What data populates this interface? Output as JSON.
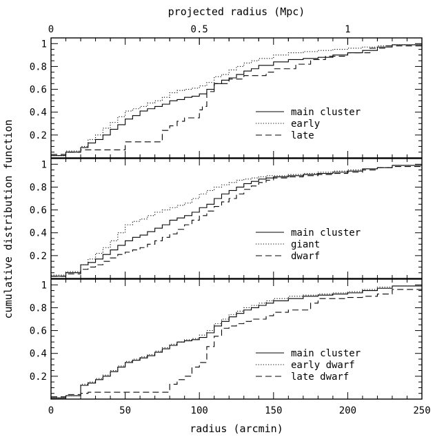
{
  "chart_data": {
    "type": "line",
    "step": true,
    "xlabel": "radius (arcmin)",
    "x2label": "projected radius (Mpc)",
    "ylabel": "cumulative distribution function",
    "xlim": [
      0,
      250
    ],
    "ylim": [
      0,
      1.05
    ],
    "x_ticks": [
      "0",
      "50",
      "100",
      "150",
      "200",
      "250"
    ],
    "x2_ticks": [
      {
        "value": 0,
        "label": "0"
      },
      {
        "value": 0.5,
        "label": "0.5"
      },
      {
        "value": 1,
        "label": "1"
      }
    ],
    "x2_scale_arcmin_per_mpc": 200,
    "y_ticks": [
      "0.2",
      "0.4",
      "0.6",
      "0.8",
      "1"
    ],
    "legend_position": "right-center",
    "panels": [
      {
        "series": [
          {
            "name": "main cluster",
            "style": "solid",
            "x": [
              0,
              10,
              20,
              25,
              30,
              35,
              40,
              45,
              50,
              55,
              60,
              65,
              70,
              75,
              80,
              85,
              90,
              95,
              100,
              105,
              110,
              115,
              120,
              125,
              130,
              135,
              140,
              150,
              160,
              170,
              180,
              190,
              200,
              210,
              220,
              230,
              250
            ],
            "y": [
              0.02,
              0.05,
              0.09,
              0.13,
              0.16,
              0.2,
              0.25,
              0.29,
              0.34,
              0.37,
              0.41,
              0.43,
              0.45,
              0.47,
              0.5,
              0.51,
              0.53,
              0.54,
              0.56,
              0.6,
              0.65,
              0.68,
              0.7,
              0.73,
              0.76,
              0.78,
              0.81,
              0.84,
              0.86,
              0.87,
              0.88,
              0.9,
              0.92,
              0.94,
              0.97,
              0.99,
              1
            ]
          },
          {
            "name": "early",
            "style": "dotted",
            "x": [
              0,
              10,
              20,
              25,
              30,
              35,
              40,
              45,
              50,
              55,
              60,
              65,
              70,
              75,
              80,
              85,
              90,
              95,
              100,
              105,
              110,
              115,
              120,
              125,
              130,
              135,
              140,
              150,
              160,
              170,
              180,
              190,
              200,
              210,
              220,
              230,
              250
            ],
            "y": [
              0.02,
              0.06,
              0.1,
              0.16,
              0.2,
              0.26,
              0.31,
              0.36,
              0.41,
              0.43,
              0.45,
              0.48,
              0.5,
              0.53,
              0.57,
              0.59,
              0.6,
              0.61,
              0.63,
              0.66,
              0.71,
              0.73,
              0.77,
              0.8,
              0.83,
              0.85,
              0.87,
              0.9,
              0.92,
              0.93,
              0.94,
              0.95,
              0.96,
              0.97,
              0.98,
              0.99,
              1
            ]
          },
          {
            "name": "late",
            "style": "dashed",
            "x": [
              0,
              10,
              20,
              30,
              50,
              60,
              75,
              80,
              85,
              90,
              100,
              102,
              105,
              110,
              120,
              130,
              145,
              150,
              165,
              175,
              185,
              200,
              215,
              225,
              250
            ],
            "y": [
              0.03,
              0.05,
              0.07,
              0.07,
              0.14,
              0.14,
              0.24,
              0.28,
              0.32,
              0.35,
              0.42,
              0.45,
              0.58,
              0.65,
              0.69,
              0.72,
              0.75,
              0.78,
              0.82,
              0.86,
              0.89,
              0.92,
              0.96,
              0.98,
              1
            ]
          }
        ]
      },
      {
        "series": [
          {
            "name": "main cluster",
            "style": "solid",
            "x": [
              0,
              10,
              20,
              25,
              30,
              35,
              40,
              45,
              50,
              55,
              60,
              65,
              70,
              75,
              80,
              85,
              90,
              95,
              100,
              105,
              110,
              115,
              120,
              125,
              130,
              135,
              140,
              145,
              150,
              160,
              170,
              180,
              190,
              200,
              210,
              220,
              230,
              250
            ],
            "y": [
              0.02,
              0.05,
              0.12,
              0.14,
              0.17,
              0.21,
              0.25,
              0.29,
              0.33,
              0.36,
              0.38,
              0.41,
              0.44,
              0.47,
              0.51,
              0.53,
              0.55,
              0.58,
              0.62,
              0.65,
              0.7,
              0.74,
              0.77,
              0.8,
              0.83,
              0.85,
              0.87,
              0.88,
              0.89,
              0.9,
              0.91,
              0.92,
              0.93,
              0.94,
              0.96,
              0.97,
              0.99,
              1
            ]
          },
          {
            "name": "giant",
            "style": "dotted",
            "x": [
              0,
              10,
              20,
              25,
              30,
              35,
              40,
              45,
              50,
              55,
              60,
              65,
              70,
              75,
              80,
              85,
              90,
              95,
              100,
              105,
              110,
              115,
              120,
              125,
              130,
              135,
              140,
              145,
              150,
              160,
              170,
              180,
              190,
              200,
              210,
              220,
              230,
              250
            ],
            "y": [
              0.03,
              0.06,
              0.12,
              0.17,
              0.22,
              0.27,
              0.33,
              0.4,
              0.47,
              0.5,
              0.52,
              0.55,
              0.58,
              0.6,
              0.62,
              0.64,
              0.66,
              0.7,
              0.74,
              0.77,
              0.8,
              0.82,
              0.84,
              0.86,
              0.87,
              0.88,
              0.89,
              0.9,
              0.9,
              0.91,
              0.92,
              0.93,
              0.94,
              0.95,
              0.96,
              0.97,
              0.99,
              1
            ]
          },
          {
            "name": "dwarf",
            "style": "dashed",
            "x": [
              0,
              10,
              20,
              25,
              30,
              35,
              40,
              45,
              50,
              55,
              60,
              65,
              70,
              75,
              80,
              85,
              90,
              95,
              100,
              105,
              110,
              115,
              120,
              125,
              130,
              135,
              140,
              145,
              150,
              160,
              170,
              180,
              190,
              200,
              210,
              220,
              230,
              250
            ],
            "y": [
              0.02,
              0.04,
              0.08,
              0.1,
              0.12,
              0.15,
              0.18,
              0.21,
              0.23,
              0.25,
              0.27,
              0.3,
              0.33,
              0.36,
              0.39,
              0.43,
              0.47,
              0.51,
              0.55,
              0.59,
              0.63,
              0.67,
              0.7,
              0.74,
              0.78,
              0.81,
              0.84,
              0.86,
              0.88,
              0.89,
              0.9,
              0.91,
              0.92,
              0.93,
              0.95,
              0.97,
              0.98,
              1
            ]
          }
        ]
      },
      {
        "series": [
          {
            "name": "main cluster",
            "style": "solid",
            "x": [
              0,
              10,
              20,
              25,
              30,
              35,
              40,
              45,
              50,
              55,
              60,
              65,
              70,
              75,
              80,
              85,
              90,
              95,
              100,
              105,
              110,
              115,
              120,
              125,
              130,
              135,
              140,
              145,
              150,
              160,
              170,
              180,
              190,
              200,
              210,
              220,
              230,
              250
            ],
            "y": [
              0.01,
              0.03,
              0.12,
              0.14,
              0.17,
              0.2,
              0.24,
              0.28,
              0.32,
              0.34,
              0.36,
              0.38,
              0.41,
              0.44,
              0.47,
              0.5,
              0.51,
              0.52,
              0.54,
              0.58,
              0.64,
              0.68,
              0.72,
              0.75,
              0.78,
              0.8,
              0.82,
              0.84,
              0.86,
              0.88,
              0.9,
              0.91,
              0.92,
              0.93,
              0.95,
              0.97,
              0.99,
              1
            ]
          },
          {
            "name": "early dwarf",
            "style": "dotted",
            "x": [
              0,
              10,
              20,
              25,
              30,
              35,
              40,
              45,
              50,
              55,
              60,
              65,
              70,
              75,
              80,
              85,
              90,
              95,
              100,
              105,
              110,
              115,
              120,
              125,
              130,
              135,
              140,
              145,
              150,
              160,
              170,
              180,
              190,
              200,
              210,
              220,
              230,
              250
            ],
            "y": [
              0.01,
              0.03,
              0.13,
              0.15,
              0.18,
              0.21,
              0.25,
              0.29,
              0.33,
              0.35,
              0.37,
              0.39,
              0.42,
              0.45,
              0.48,
              0.5,
              0.52,
              0.53,
              0.56,
              0.6,
              0.66,
              0.7,
              0.74,
              0.77,
              0.8,
              0.82,
              0.84,
              0.86,
              0.88,
              0.9,
              0.91,
              0.92,
              0.93,
              0.94,
              0.96,
              0.98,
              0.99,
              1
            ]
          },
          {
            "name": "late dwarf",
            "style": "dashed",
            "x": [
              0,
              10,
              20,
              25,
              75,
              80,
              85,
              90,
              95,
              100,
              105,
              110,
              115,
              120,
              125,
              130,
              135,
              145,
              150,
              160,
              175,
              180,
              200,
              210,
              220,
              230,
              250
            ],
            "y": [
              0.02,
              0.04,
              0.05,
              0.06,
              0.06,
              0.13,
              0.17,
              0.2,
              0.28,
              0.32,
              0.46,
              0.55,
              0.62,
              0.64,
              0.66,
              0.68,
              0.7,
              0.73,
              0.76,
              0.78,
              0.84,
              0.88,
              0.89,
              0.9,
              0.92,
              0.96,
              1
            ]
          }
        ]
      }
    ]
  }
}
